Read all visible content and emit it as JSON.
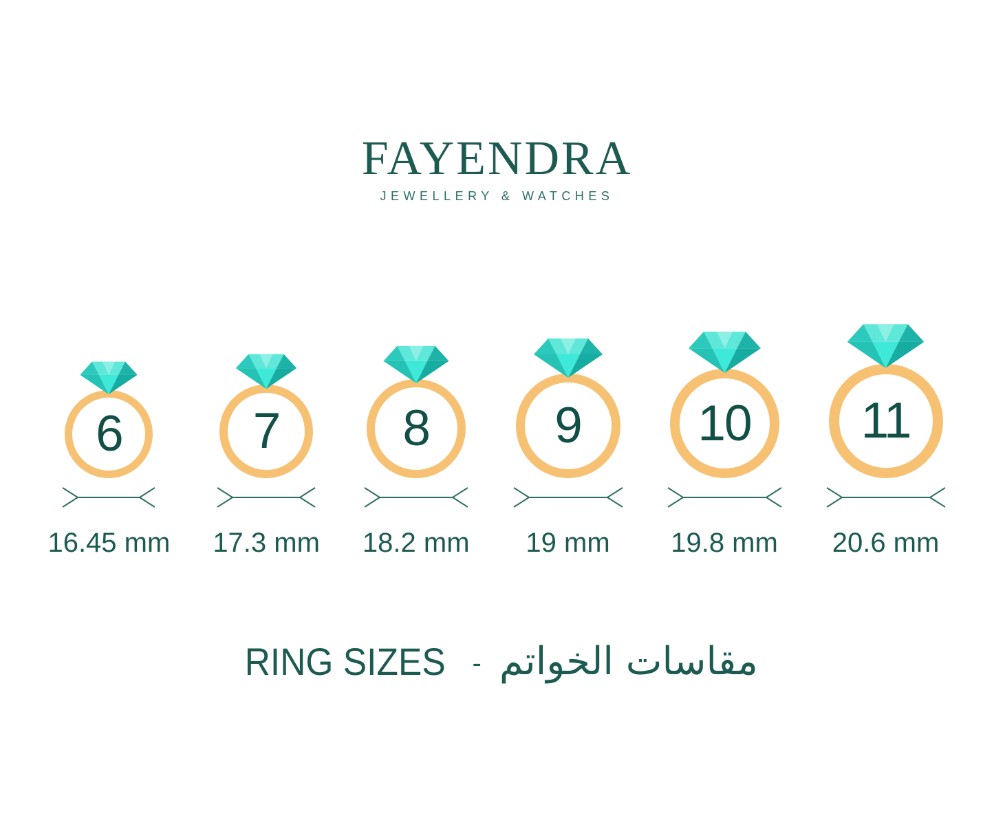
{
  "brand": {
    "name": "FAYENDRA",
    "tagline": "JEWELLERY & WATCHES"
  },
  "rings": [
    {
      "size": "6",
      "diameter": "16.45 mm"
    },
    {
      "size": "7",
      "diameter": "17.3 mm"
    },
    {
      "size": "8",
      "diameter": "18.2 mm"
    },
    {
      "size": "9",
      "diameter": "19 mm"
    },
    {
      "size": "10",
      "diameter": "19.8 mm"
    },
    {
      "size": "11",
      "diameter": "20.6 mm"
    }
  ],
  "footer": {
    "title_en": "RING SIZES",
    "separator": "-",
    "title_ar": "مقاسات الخواتم"
  },
  "colors": {
    "text_teal": "#1d5a51",
    "tagline_teal": "#2d6e64",
    "number_teal": "#114f47",
    "band_orange": "#f6c173",
    "measure_teal": "#2e6f64",
    "gem_bright": "#3ee9d9",
    "gem_dark": "#17aca1"
  },
  "icons": {
    "gem": "diamond-gem-icon",
    "measure": "diameter-measure-arrow"
  }
}
